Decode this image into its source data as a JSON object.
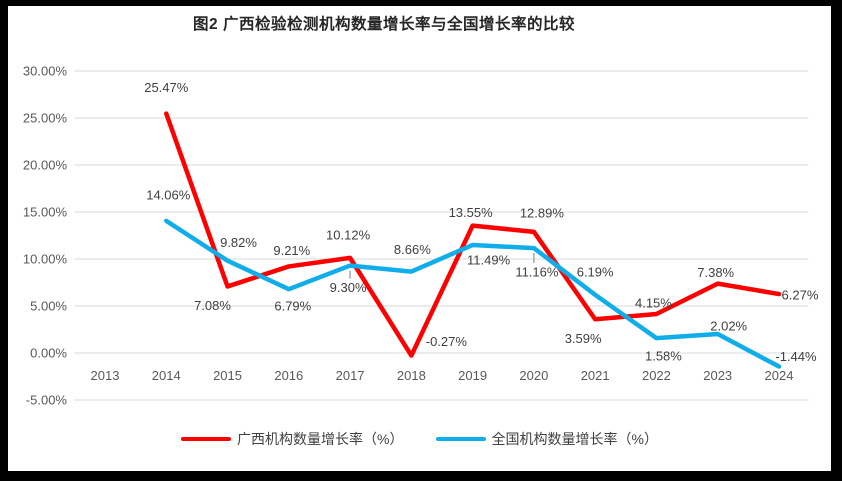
{
  "chart_data": {
    "type": "line",
    "title": "图2 广西检验检测机构数量增长率与全国增长率的比较",
    "categories": [
      "2013",
      "2014",
      "2015",
      "2016",
      "2017",
      "2018",
      "2019",
      "2020",
      "2021",
      "2022",
      "2023",
      "2024"
    ],
    "series": [
      {
        "name": "广西机构数量增长率（%）",
        "color": "#fe0000",
        "values": [
          null,
          25.47,
          7.08,
          9.21,
          10.12,
          -0.27,
          13.55,
          12.89,
          3.59,
          4.15,
          7.38,
          6.27
        ],
        "labels": [
          null,
          "25.47%",
          "7.08%",
          "9.21%",
          "10.12%",
          "-0.27%",
          "13.55%",
          "12.89%",
          "3.59%",
          "4.15%",
          "7.38%",
          "6.27%"
        ]
      },
      {
        "name": "全国机构数量增长率（%）",
        "color": "#0fade9",
        "values": [
          null,
          14.06,
          9.82,
          6.79,
          9.3,
          8.66,
          11.49,
          11.16,
          6.19,
          1.58,
          2.02,
          -1.44
        ],
        "labels": [
          null,
          "14.06%",
          "9.82%",
          "6.79%",
          "9.30%",
          "8.66%",
          "11.49%",
          "11.16%",
          "6.19%",
          "1.58%",
          "2.02%",
          "-1.44%"
        ]
      }
    ],
    "y_axis": {
      "min": -5,
      "max": 30,
      "step": 5,
      "tick_labels": [
        "30.00%",
        "25.00%",
        "20.00%",
        "15.00%",
        "10.00%",
        "5.00%",
        "0.00%",
        "-5.00%"
      ]
    },
    "grid": "horizontal-only",
    "legend_position": "bottom",
    "layout_hints": {
      "label_offsets": [
        [
          null,
          [
            0,
            -26
          ],
          [
            -15,
            19
          ],
          [
            3,
            -16
          ],
          [
            -2,
            -23
          ],
          [
            35,
            -14
          ],
          [
            -2,
            -13
          ],
          [
            8,
            -19
          ],
          [
            -12,
            19
          ],
          [
            -3,
            -11
          ],
          [
            -2,
            -11
          ],
          [
            21,
            1
          ]
        ],
        [
          null,
          [
            2,
            -26
          ],
          [
            11,
            -18
          ],
          [
            4,
            17
          ],
          [
            -2,
            22
          ],
          [
            1,
            -22
          ],
          [
            16,
            15
          ],
          [
            3,
            24
          ],
          [
            0,
            -23
          ],
          [
            7,
            18
          ],
          [
            11,
            -8
          ],
          [
            17,
            -10
          ]
        ]
      ],
      "leader_lines": [
        {
          "series": 1,
          "index": 4
        },
        {
          "series": 1,
          "index": 7
        }
      ]
    }
  },
  "styles": {
    "grid_color": "#d9d9d9",
    "axis_label_color": "#595959",
    "data_label_color": "#3f3f3f",
    "title_color": "#262626",
    "leader_color": "#a6a6a6",
    "frame_color": "#000000"
  }
}
